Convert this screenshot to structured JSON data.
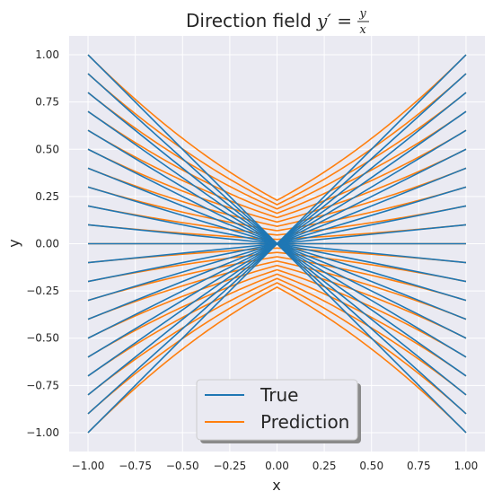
{
  "chart_data": {
    "type": "line",
    "title": "Direction field",
    "title_math": {
      "lhs": "y′ =",
      "numerator": "y",
      "denominator": "x"
    },
    "xlabel": "x",
    "ylabel": "y",
    "xlim": [
      -1.1,
      1.1
    ],
    "ylim": [
      -1.1,
      1.1
    ],
    "xticks": [
      -1.0,
      -0.75,
      -0.5,
      -0.25,
      0.0,
      0.25,
      0.5,
      0.75,
      1.0
    ],
    "yticks": [
      -1.0,
      -0.75,
      -0.5,
      -0.25,
      0.0,
      0.25,
      0.5,
      0.75,
      1.0
    ],
    "xtick_labels": [
      "−1.00",
      "−0.75",
      "−0.50",
      "−0.25",
      "0.00",
      "0.25",
      "0.50",
      "0.75",
      "1.00"
    ],
    "ytick_labels": [
      "−1.00",
      "−0.75",
      "−0.50",
      "−0.25",
      "0.00",
      "0.25",
      "0.50",
      "0.75",
      "1.00"
    ],
    "grid": true,
    "legend_position": "lower center",
    "series": [
      {
        "name": "True",
        "color": "#1f77b4",
        "description": "lines y = c*|x|",
        "c_values": [
          -1.0,
          -0.9,
          -0.8,
          -0.7,
          -0.6,
          -0.5,
          -0.4,
          -0.3,
          -0.2,
          -0.1,
          0.0,
          0.1,
          0.2,
          0.3,
          0.4,
          0.5,
          0.6,
          0.7,
          0.8,
          0.9,
          1.0
        ]
      },
      {
        "name": "Prediction",
        "color": "#ff7f0e",
        "c_values": [
          -1.0,
          -0.9,
          -0.8,
          -0.7,
          -0.6,
          -0.5,
          -0.4,
          -0.3,
          -0.2,
          -0.1,
          0.0,
          0.1,
          0.2,
          0.3,
          0.4,
          0.5,
          0.6,
          0.7,
          0.8,
          0.9,
          1.0
        ],
        "offset_at_x0": [
          -0.23,
          -0.207,
          -0.184,
          -0.161,
          -0.138,
          -0.115,
          -0.092,
          -0.069,
          -0.046,
          -0.023,
          0.0,
          0.023,
          0.046,
          0.069,
          0.092,
          0.115,
          0.138,
          0.161,
          0.184,
          0.207,
          0.23
        ]
      }
    ]
  },
  "colors": {
    "plot_background": "#eaeaf2",
    "grid": "#ffffff",
    "text": "#262626"
  }
}
